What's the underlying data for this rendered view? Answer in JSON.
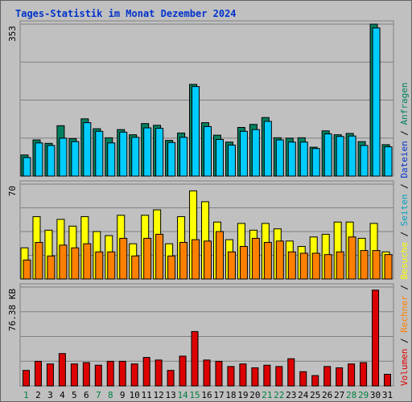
{
  "title": "Tages-Statistik im Monat Dezember 2024",
  "chart_data": [
    {
      "type": "bar",
      "panel": "top",
      "categories": [
        "1",
        "2",
        "3",
        "4",
        "5",
        "6",
        "7",
        "8",
        "9",
        "10",
        "11",
        "12",
        "13",
        "14",
        "15",
        "16",
        "17",
        "18",
        "19",
        "20",
        "21",
        "22",
        "23",
        "24",
        "25",
        "26",
        "27",
        "28",
        "29",
        "30",
        "31"
      ],
      "ymax_label": "353",
      "ylim": [
        0,
        353
      ],
      "series": [
        {
          "name": "Anfragen",
          "color": "#008060",
          "values": [
            49,
            84,
            76,
            117,
            87,
            133,
            110,
            89,
            108,
            96,
            122,
            118,
            83,
            100,
            213,
            124,
            95,
            79,
            113,
            120,
            136,
            89,
            88,
            89,
            67,
            105,
            96,
            99,
            80,
            353,
            73
          ]
        },
        {
          "name": "Dateien",
          "color": "#00ccff",
          "values": [
            43,
            77,
            71,
            88,
            80,
            124,
            104,
            77,
            102,
            90,
            112,
            111,
            78,
            90,
            208,
            115,
            85,
            72,
            104,
            108,
            127,
            84,
            79,
            79,
            64,
            98,
            92,
            93,
            71,
            344,
            68
          ]
        }
      ]
    },
    {
      "type": "bar",
      "panel": "middle",
      "categories": [
        "1",
        "2",
        "3",
        "4",
        "5",
        "6",
        "7",
        "8",
        "9",
        "10",
        "11",
        "12",
        "13",
        "14",
        "15",
        "16",
        "17",
        "18",
        "19",
        "20",
        "21",
        "22",
        "23",
        "24",
        "25",
        "26",
        "27",
        "28",
        "29",
        "30",
        "31"
      ],
      "ymax_label": "70",
      "ylim": [
        0,
        70
      ],
      "series": [
        {
          "name": "Seiten",
          "color": "#ffff00",
          "values": [
            23,
            46,
            36,
            44,
            39,
            46,
            35,
            32,
            47,
            26,
            47,
            51,
            26,
            46,
            65,
            57,
            42,
            29,
            41,
            36,
            41,
            37,
            28,
            24,
            31,
            33,
            42,
            42,
            30,
            41,
            20
          ]
        },
        {
          "name": "Besuche",
          "color": "#ff8000",
          "values": [
            14,
            27,
            17,
            25,
            23,
            26,
            20,
            20,
            30,
            17,
            30,
            33,
            17,
            27,
            29,
            28,
            35,
            20,
            24,
            30,
            27,
            28,
            20,
            19,
            19,
            18,
            20,
            31,
            21,
            21,
            18
          ]
        }
      ]
    },
    {
      "type": "bar",
      "panel": "bottom",
      "categories": [
        "1",
        "2",
        "3",
        "4",
        "5",
        "6",
        "7",
        "8",
        "9",
        "10",
        "11",
        "12",
        "13",
        "14",
        "15",
        "16",
        "17",
        "18",
        "19",
        "20",
        "21",
        "22",
        "23",
        "24",
        "25",
        "26",
        "27",
        "28",
        "29",
        "30",
        "31"
      ],
      "ymax_label": "76.38 KB",
      "ylim": [
        0,
        76.38
      ],
      "series": [
        {
          "name": "Volumen",
          "color": "#dd0000",
          "values": [
            12,
            19,
            17,
            25,
            17,
            18,
            16,
            19,
            19,
            17,
            22,
            20,
            12,
            23,
            42,
            20,
            19,
            15,
            17,
            14,
            16,
            15,
            21,
            11,
            8,
            15,
            14,
            17,
            18,
            74,
            9
          ]
        }
      ]
    }
  ],
  "legend": {
    "items": [
      {
        "label": "Anfragen",
        "color": "#008060"
      },
      {
        "label": "Dateien",
        "color": "#0033cc"
      },
      {
        "label": "Seiten",
        "color": "#00a0c0"
      },
      {
        "label": "Besuche",
        "color": "#ffff00"
      },
      {
        "label": "Rechner",
        "color": "#ff8000"
      },
      {
        "label": "Volumen",
        "color": "#dd0000"
      }
    ],
    "separator": " / "
  },
  "weekend_days": [
    "1",
    "7",
    "8",
    "14",
    "15",
    "21",
    "22",
    "28",
    "29"
  ],
  "colors": {
    "weekend": "#008040",
    "weekday": "#000000",
    "grid": "#808080",
    "background": "#c0c0c0"
  }
}
